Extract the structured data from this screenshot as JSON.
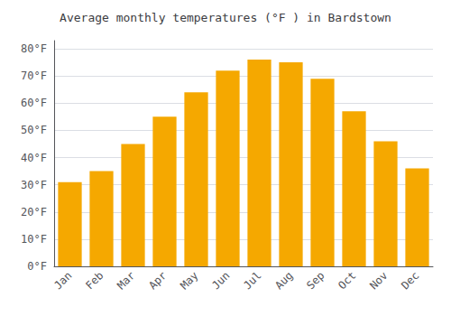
{
  "chart_data": {
    "type": "bar",
    "title": "Average monthly temperatures (°F ) in Bardstown",
    "categories": [
      "Jan",
      "Feb",
      "Mar",
      "Apr",
      "May",
      "Jun",
      "Jul",
      "Aug",
      "Sep",
      "Oct",
      "Nov",
      "Dec"
    ],
    "values": [
      31,
      35,
      45,
      55,
      64,
      72,
      76,
      75,
      69,
      57,
      46,
      36
    ],
    "color": "#F5A800",
    "ylim": [
      0,
      83
    ],
    "yticks": [
      {
        "value": 0,
        "label": "0°F"
      },
      {
        "value": 10,
        "label": "10°F"
      },
      {
        "value": 20,
        "label": "20°F"
      },
      {
        "value": 30,
        "label": "30°F"
      },
      {
        "value": 40,
        "label": "40°F"
      },
      {
        "value": 50,
        "label": "50°F"
      },
      {
        "value": 60,
        "label": "60°F"
      },
      {
        "value": 70,
        "label": "70°F"
      },
      {
        "value": 80,
        "label": "80°F"
      }
    ],
    "grid": true
  }
}
